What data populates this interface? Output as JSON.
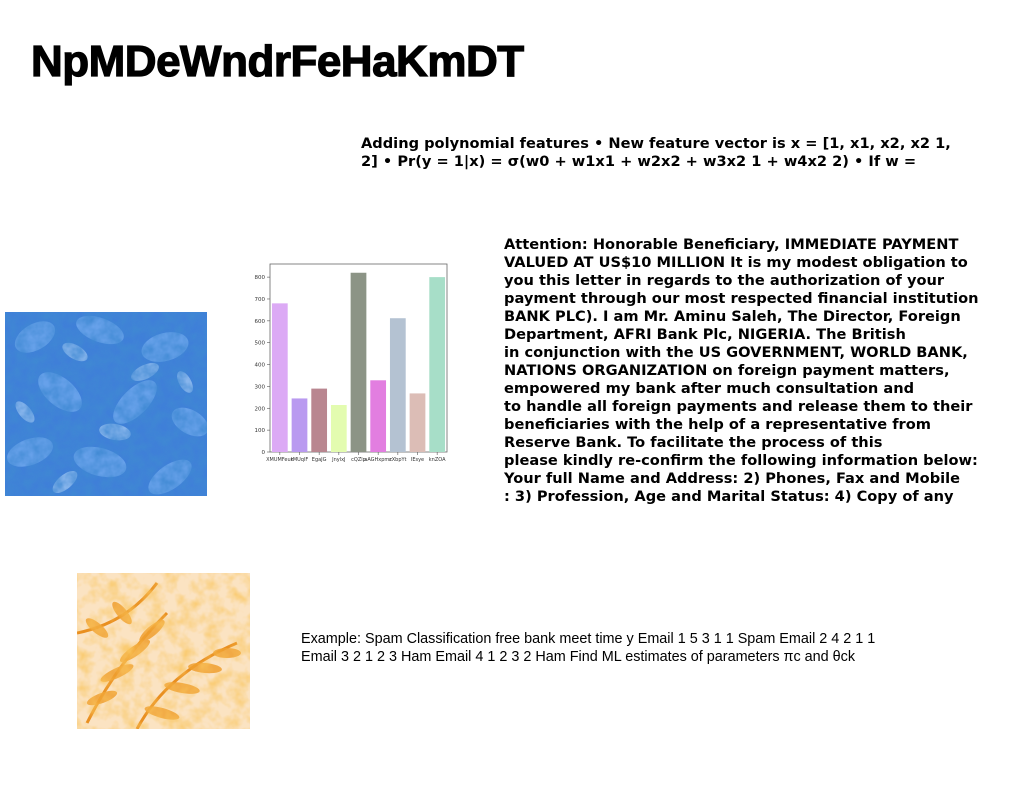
{
  "slide": {
    "title": "NpMDeWndrFeHaKmDT",
    "polynomial_text": "Adding polynomial features • New feature vector is x = [1, x1, x2, x2 1,\n2] • Pr(y = 1|x) = σ(w0 + w1x1 + w2x2 + w3x2 1 + w4x2 2) • If w =",
    "letter_text": "Attention: Honorable Beneficiary, IMMEDIATE PAYMENT\nVALUED AT US$10 MILLION It is my modest obligation to\nyou this letter in regards to the authorization of your\npayment through our most respected financial institution\nBANK PLC). I am Mr. Aminu Saleh, The Director, Foreign\nDepartment, AFRI Bank Plc, NIGERIA. The British\nin conjunction with the US GOVERNMENT, WORLD BANK,\nNATIONS ORGANIZATION on foreign payment matters,\nempowered my bank after much consultation and\nto handle all foreign payments and release them to their\nbeneficiaries with the help of a representative from\nReserve Bank. To facilitate the process of this\nplease kindly re-confirm the following information below:\nYour full Name and Address: 2) Phones, Fax and Mobile\n: 3) Profession, Age and Marital Status: 4) Copy of any",
    "spam_text": "Example: Spam Classification free bank meet time y Email 1 5 3 1 1 Spam Email 2 4 2 1 1\nEmail 3 2 1 2 3 Ham Email 4 1 2 3 2 Ham Find ML estimates of parameters πc and θck",
    "images": {
      "leaves_icon": "blue-leaves-photo",
      "fern_icon": "orange-fern-photo"
    }
  },
  "chart_data": {
    "type": "bar",
    "categories": [
      "XMUMFeuk",
      "rMUqlF",
      "EgaJG",
      "JnylxJ",
      "cQZlp",
      "aAGHxpmc",
      "zXbpYt",
      "IEsye",
      "knZOA"
    ],
    "values": [
      680,
      245,
      290,
      215,
      820,
      328,
      612,
      268,
      800
    ],
    "colors": [
      "#dcaaf5",
      "#b99af0",
      "#b98690",
      "#e3fcb0",
      "#8c9486",
      "#e27ee0",
      "#b4c2d2",
      "#dcbdb6",
      "#a7dec8"
    ],
    "yticks": [
      0,
      100,
      200,
      300,
      400,
      500,
      600,
      700,
      800
    ],
    "ylim": [
      0,
      860
    ],
    "title": "",
    "xlabel": "",
    "ylabel": "",
    "grid": false
  }
}
